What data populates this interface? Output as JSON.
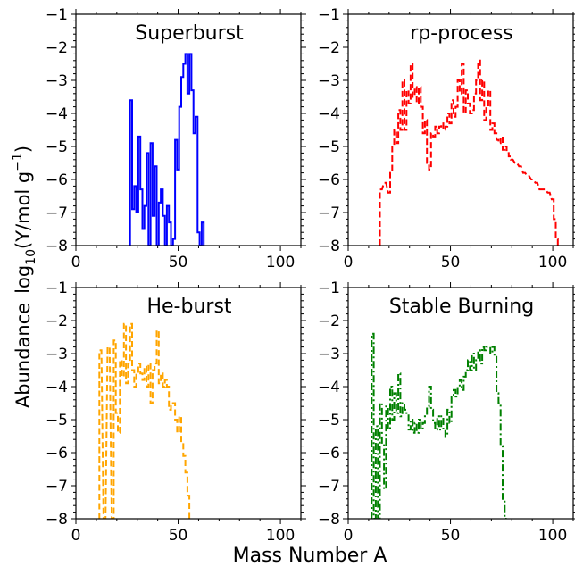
{
  "figure": {
    "ylabel_main": "Abundance",
    "ylabel_log": "log",
    "ylabel_sub": "10",
    "ylabel_units": "(Y/mol g",
    "ylabel_sup": "−1",
    "ylabel_close": ")",
    "xlabel": "Mass Number  A"
  },
  "chart_data": [
    {
      "type": "line",
      "title": "Superburst",
      "color": "#0000ff",
      "linestyle": "solid",
      "xlim": [
        0,
        110
      ],
      "ylim": [
        -8,
        -1
      ],
      "xticks": [
        0,
        50,
        100
      ],
      "yticks": [
        -8,
        -7,
        -6,
        -5,
        -4,
        -3,
        -2,
        -1
      ],
      "x": [
        27,
        28,
        29,
        30,
        31,
        32,
        33,
        34,
        35,
        36,
        37,
        38,
        39,
        40,
        41,
        42,
        43,
        44,
        45,
        46,
        47,
        48,
        49,
        50,
        51,
        52,
        53,
        54,
        55,
        56,
        57,
        58,
        59,
        60,
        61,
        62
      ],
      "y": [
        -3.6,
        -6.9,
        -6.2,
        -7.0,
        -4.7,
        -6.3,
        -7.5,
        -6.8,
        -5.2,
        -8.0,
        -4.9,
        -7.1,
        -5.6,
        -8.0,
        -6.7,
        -6.3,
        -7.1,
        -8.0,
        -6.8,
        -7.3,
        -8.0,
        -7.8,
        -4.8,
        -5.7,
        -3.8,
        -2.9,
        -2.5,
        -2.2,
        -3.4,
        -2.2,
        -3.3,
        -4.6,
        -4.1,
        -7.6,
        -8.0,
        -7.3
      ]
    },
    {
      "type": "line",
      "title": "rp-process",
      "color": "#ff0000",
      "linestyle": "dashed",
      "xlim": [
        0,
        110
      ],
      "ylim": [
        -8,
        -1
      ],
      "xticks": [
        0,
        50,
        100
      ],
      "yticks": [
        -8,
        -7,
        -6,
        -5,
        -4,
        -3,
        -2,
        -1
      ],
      "x": [
        16,
        18,
        20,
        21,
        22,
        23,
        24,
        25,
        26,
        27,
        28,
        29,
        30,
        31,
        32,
        33,
        34,
        35,
        36,
        37,
        38,
        39,
        40,
        41,
        42,
        43,
        44,
        45,
        46,
        47,
        48,
        49,
        50,
        51,
        52,
        53,
        54,
        55,
        56,
        57,
        58,
        59,
        60,
        61,
        62,
        63,
        64,
        65,
        66,
        67,
        68,
        69,
        70,
        71,
        72,
        73,
        74,
        75,
        76,
        77,
        78,
        79,
        80,
        82,
        84,
        86,
        88,
        90,
        92,
        94,
        96,
        98,
        100,
        101,
        102,
        103
      ],
      "y": [
        -6.3,
        -6.1,
        -6.4,
        -5.8,
        -5.0,
        -4.5,
        -4.9,
        -3.9,
        -4.5,
        -3.0,
        -4.5,
        -3.3,
        -3.7,
        -2.5,
        -3.5,
        -3.2,
        -3.7,
        -3.2,
        -3.8,
        -4.6,
        -4.2,
        -5.5,
        -5.7,
        -4.6,
        -4.7,
        -4.4,
        -4.6,
        -4.4,
        -4.3,
        -4.5,
        -4.4,
        -4.0,
        -4.3,
        -3.6,
        -4.1,
        -3.8,
        -3.0,
        -3.4,
        -2.5,
        -4.0,
        -3.3,
        -3.7,
        -4.0,
        -3.9,
        -3.4,
        -3.0,
        -2.4,
        -3.6,
        -3.0,
        -4.2,
        -3.8,
        -3.3,
        -4.5,
        -4.3,
        -4.6,
        -4.8,
        -4.9,
        -4.7,
        -5.1,
        -5.0,
        -5.2,
        -5.3,
        -5.4,
        -5.5,
        -5.6,
        -5.8,
        -5.9,
        -6.0,
        -6.1,
        -6.3,
        -6.3,
        -6.4,
        -6.6,
        -7.2,
        -7.8,
        -8.0
      ]
    },
    {
      "type": "line",
      "title": "He-burst",
      "color": "#ffa500",
      "linestyle": "dashed",
      "xlim": [
        0,
        110
      ],
      "ylim": [
        -8,
        -1
      ],
      "xticks": [
        0,
        50,
        100
      ],
      "yticks": [
        -8,
        -7,
        -6,
        -5,
        -4,
        -3,
        -2,
        -1
      ],
      "x": [
        12,
        14,
        16,
        18,
        19,
        20,
        21,
        22,
        23,
        24,
        25,
        26,
        27,
        28,
        29,
        30,
        31,
        32,
        33,
        34,
        35,
        36,
        37,
        38,
        39,
        40,
        41,
        42,
        43,
        44,
        45,
        46,
        47,
        48,
        49,
        50,
        51,
        52,
        53,
        54,
        55,
        56
      ],
      "y": [
        -2.9,
        -8.0,
        -2.8,
        -8.0,
        -2.6,
        -4.8,
        -5.4,
        -3.2,
        -3.7,
        -2.1,
        -3.9,
        -3.3,
        -2.1,
        -3.5,
        -4.0,
        -3.6,
        -3.3,
        -3.6,
        -3.8,
        -3.4,
        -4.0,
        -3.3,
        -4.5,
        -3.5,
        -3.3,
        -2.3,
        -3.9,
        -3.6,
        -4.0,
        -3.8,
        -4.0,
        -4.7,
        -4.5,
        -4.5,
        -5.0,
        -5.4,
        -4.9,
        -5.7,
        -6.1,
        -6.6,
        -7.3,
        -8.0
      ]
    },
    {
      "type": "line",
      "title": "Stable Burning",
      "color": "#008000",
      "linestyle": "dashdot",
      "xlim": [
        0,
        110
      ],
      "ylim": [
        -8,
        -1
      ],
      "xticks": [
        0,
        50,
        100
      ],
      "yticks": [
        -8,
        -7,
        -6,
        -5,
        -4,
        -3,
        -2,
        -1
      ],
      "x": [
        12,
        13,
        14,
        15,
        16,
        17,
        18,
        19,
        20,
        21,
        22,
        23,
        24,
        25,
        26,
        27,
        28,
        29,
        30,
        31,
        32,
        33,
        34,
        35,
        36,
        37,
        38,
        39,
        40,
        41,
        42,
        43,
        44,
        45,
        46,
        47,
        48,
        49,
        50,
        51,
        52,
        53,
        54,
        55,
        56,
        57,
        58,
        59,
        60,
        61,
        62,
        63,
        64,
        65,
        66,
        67,
        68,
        69,
        70,
        71,
        72,
        73,
        74,
        75,
        76,
        77
      ],
      "y": [
        -2.4,
        -8.0,
        -5.2,
        -8.0,
        -4.5,
        -5.7,
        -7.1,
        -4.6,
        -5.3,
        -4.0,
        -5.0,
        -4.2,
        -4.8,
        -3.6,
        -4.9,
        -4.5,
        -4.7,
        -4.8,
        -5.3,
        -5.0,
        -5.4,
        -5.1,
        -5.4,
        -5.0,
        -5.3,
        -5.1,
        -4.9,
        -4.6,
        -4.0,
        -4.7,
        -5.1,
        -5.3,
        -4.9,
        -5.3,
        -4.9,
        -5.3,
        -5.5,
        -4.7,
        -5.1,
        -4.3,
        -4.1,
        -4.3,
        -4.0,
        -3.8,
        -4.1,
        -3.7,
        -3.5,
        -3.2,
        -3.5,
        -3.0,
        -3.5,
        -3.2,
        -2.9,
        -3.3,
        -2.8,
        -2.9,
        -2.8,
        -2.8,
        -3.0,
        -2.8,
        -3.1,
        -4.2,
        -4.5,
        -5.8,
        -7.4,
        -8.0
      ]
    }
  ]
}
